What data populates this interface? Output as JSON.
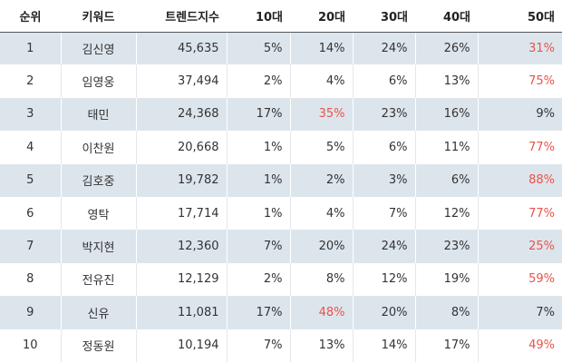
{
  "table": {
    "header": [
      "순위",
      "키워드",
      "트렌드지수",
      "10대",
      "20대",
      "30대",
      "40대",
      "50대"
    ],
    "rows": [
      [
        "1",
        "김신영",
        "45,635",
        "5%",
        "14%",
        "24%",
        "26%",
        "31%"
      ],
      [
        "2",
        "임영웅",
        "37,494",
        "2%",
        "4%",
        "6%",
        "13%",
        "75%"
      ],
      [
        "3",
        "태민",
        "24,368",
        "17%",
        "35%",
        "23%",
        "16%",
        "9%"
      ],
      [
        "4",
        "이찬원",
        "20,668",
        "1%",
        "5%",
        "6%",
        "11%",
        "77%"
      ],
      [
        "5",
        "김호중",
        "19,782",
        "1%",
        "2%",
        "3%",
        "6%",
        "88%"
      ],
      [
        "6",
        "영탁",
        "17,714",
        "1%",
        "4%",
        "7%",
        "12%",
        "77%"
      ],
      [
        "7",
        "박지현",
        "12,360",
        "7%",
        "20%",
        "24%",
        "23%",
        "25%"
      ],
      [
        "8",
        "전유진",
        "12,129",
        "2%",
        "8%",
        "12%",
        "19%",
        "59%"
      ],
      [
        "9",
        "신유",
        "11,081",
        "17%",
        "48%",
        "20%",
        "8%",
        "7%"
      ],
      [
        "10",
        "정동원",
        "10,194",
        "7%",
        "13%",
        "14%",
        "17%",
        "49%"
      ]
    ],
    "highlight_color": "#e8534a"
  }
}
